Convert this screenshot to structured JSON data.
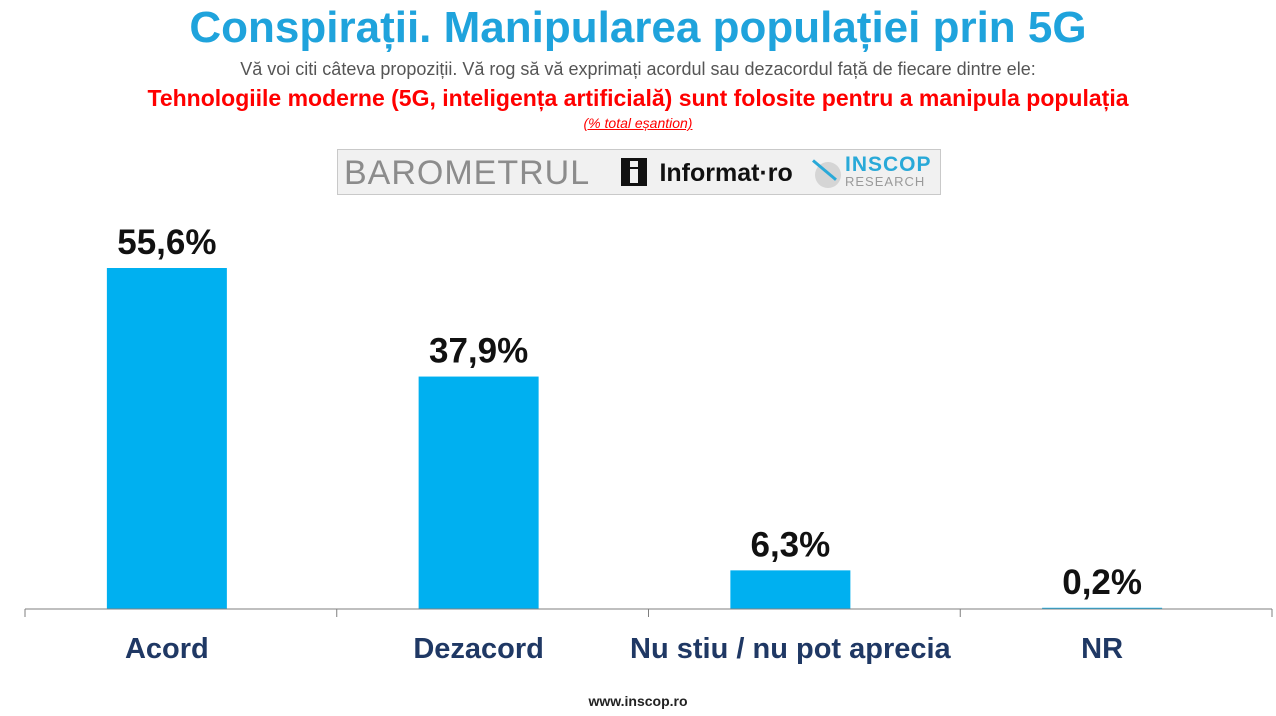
{
  "header": {
    "title": "Conspirații. Manipularea populației prin 5G",
    "subtitle": "Vă voi citi câteva propoziții. Vă rog să vă exprimați acordul sau dezacordul față de fiecare dintre ele:",
    "question": "Tehnologiile moderne (5G, inteligența artificială) sunt folosite pentru a manipula populația",
    "note": "(% total eșantion)"
  },
  "logos": {
    "barometrul": "BAROMETRUL",
    "informat": "Informat·ro",
    "inscop_name": "INSCOP",
    "inscop_sub": "RESEARCH"
  },
  "footer": {
    "url": "www.inscop.ro"
  },
  "colors": {
    "title": "#1fa3dc",
    "question": "#ff0000",
    "bar": "#00b0f0",
    "category": "#1f3864",
    "axis": "#7f7f7f"
  },
  "chart_data": {
    "type": "bar",
    "categories": [
      "Acord",
      "Dezacord",
      "Nu stiu / nu pot aprecia",
      "NR"
    ],
    "values": [
      55.6,
      37.9,
      6.3,
      0.2
    ],
    "labels": [
      "55,6%",
      "37,9%",
      "6,3%",
      "0,2%"
    ],
    "ylim": [
      0,
      55.6
    ],
    "grid": false,
    "legend": "none"
  }
}
